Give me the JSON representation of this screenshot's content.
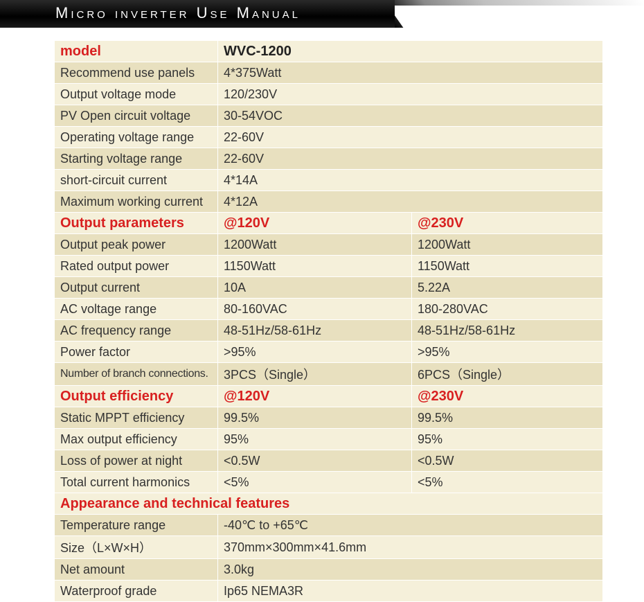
{
  "header": {
    "title": "Micro inverter Use Manual"
  },
  "colors": {
    "row_odd": "#f5f0da",
    "row_even": "#e8e0bf",
    "header_red": "#d82020",
    "text": "#333333",
    "border": "#ffffff"
  },
  "section1": {
    "header": {
      "label": "model",
      "value": "WVC-1200"
    },
    "rows": [
      {
        "label": "Recommend use panels",
        "value": "4*375Watt"
      },
      {
        "label": "Output voltage mode",
        "value": "120/230V"
      },
      {
        "label": "PV Open circuit voltage",
        "value": "30-54VOC"
      },
      {
        "label": "Operating voltage range",
        "value": "22-60V"
      },
      {
        "label": "Starting voltage range",
        "value": "22-60V"
      },
      {
        "label": "short-circuit current",
        "value": "4*14A"
      },
      {
        "label": "Maximum working current",
        "value": "4*12A"
      }
    ]
  },
  "section2": {
    "header": {
      "label": "Output parameters",
      "v120": "@120V",
      "v230": "@230V"
    },
    "rows": [
      {
        "label": "Output peak power",
        "v120": "1200Watt",
        "v230": "1200Watt"
      },
      {
        "label": "Rated output power",
        "v120": "1150Watt",
        "v230": "1150Watt"
      },
      {
        "label": "Output current",
        "v120": "10A",
        "v230": "5.22A"
      },
      {
        "label": "AC voltage range",
        "v120": "80-160VAC",
        "v230": "180-280VAC"
      },
      {
        "label": "AC frequency range",
        "v120": "48-51Hz/58-61Hz",
        "v230": "48-51Hz/58-61Hz"
      },
      {
        "label": "Power factor",
        "v120": ">95%",
        "v230": ">95%"
      },
      {
        "label": "Number of branch connections.",
        "v120": "3PCS（Single）",
        "v230": "6PCS（Single）",
        "small": true
      }
    ]
  },
  "section3": {
    "header": {
      "label": "Output efficiency",
      "v120": "@120V",
      "v230": "@230V"
    },
    "rows": [
      {
        "label": "Static MPPT efficiency",
        "v120": "99.5%",
        "v230": "99.5%"
      },
      {
        "label": "Max output efficiency",
        "v120": "95%",
        "v230": "95%"
      },
      {
        "label": "Loss of power at night",
        "v120": "<0.5W",
        "v230": "<0.5W"
      },
      {
        "label": "Total current harmonics",
        "v120": "<5%",
        "v230": "<5%"
      }
    ]
  },
  "section4": {
    "header": {
      "label": "Appearance and technical features"
    },
    "rows": [
      {
        "label": "Temperature range",
        "value": "-40℃ to +65℃"
      },
      {
        "label": "Size（L×W×H）",
        "value": "370mm×300mm×41.6mm"
      },
      {
        "label": "Net amount",
        "value": "3.0kg"
      },
      {
        "label": "Waterproof grade",
        "value": "Ip65 NEMA3R"
      }
    ]
  }
}
